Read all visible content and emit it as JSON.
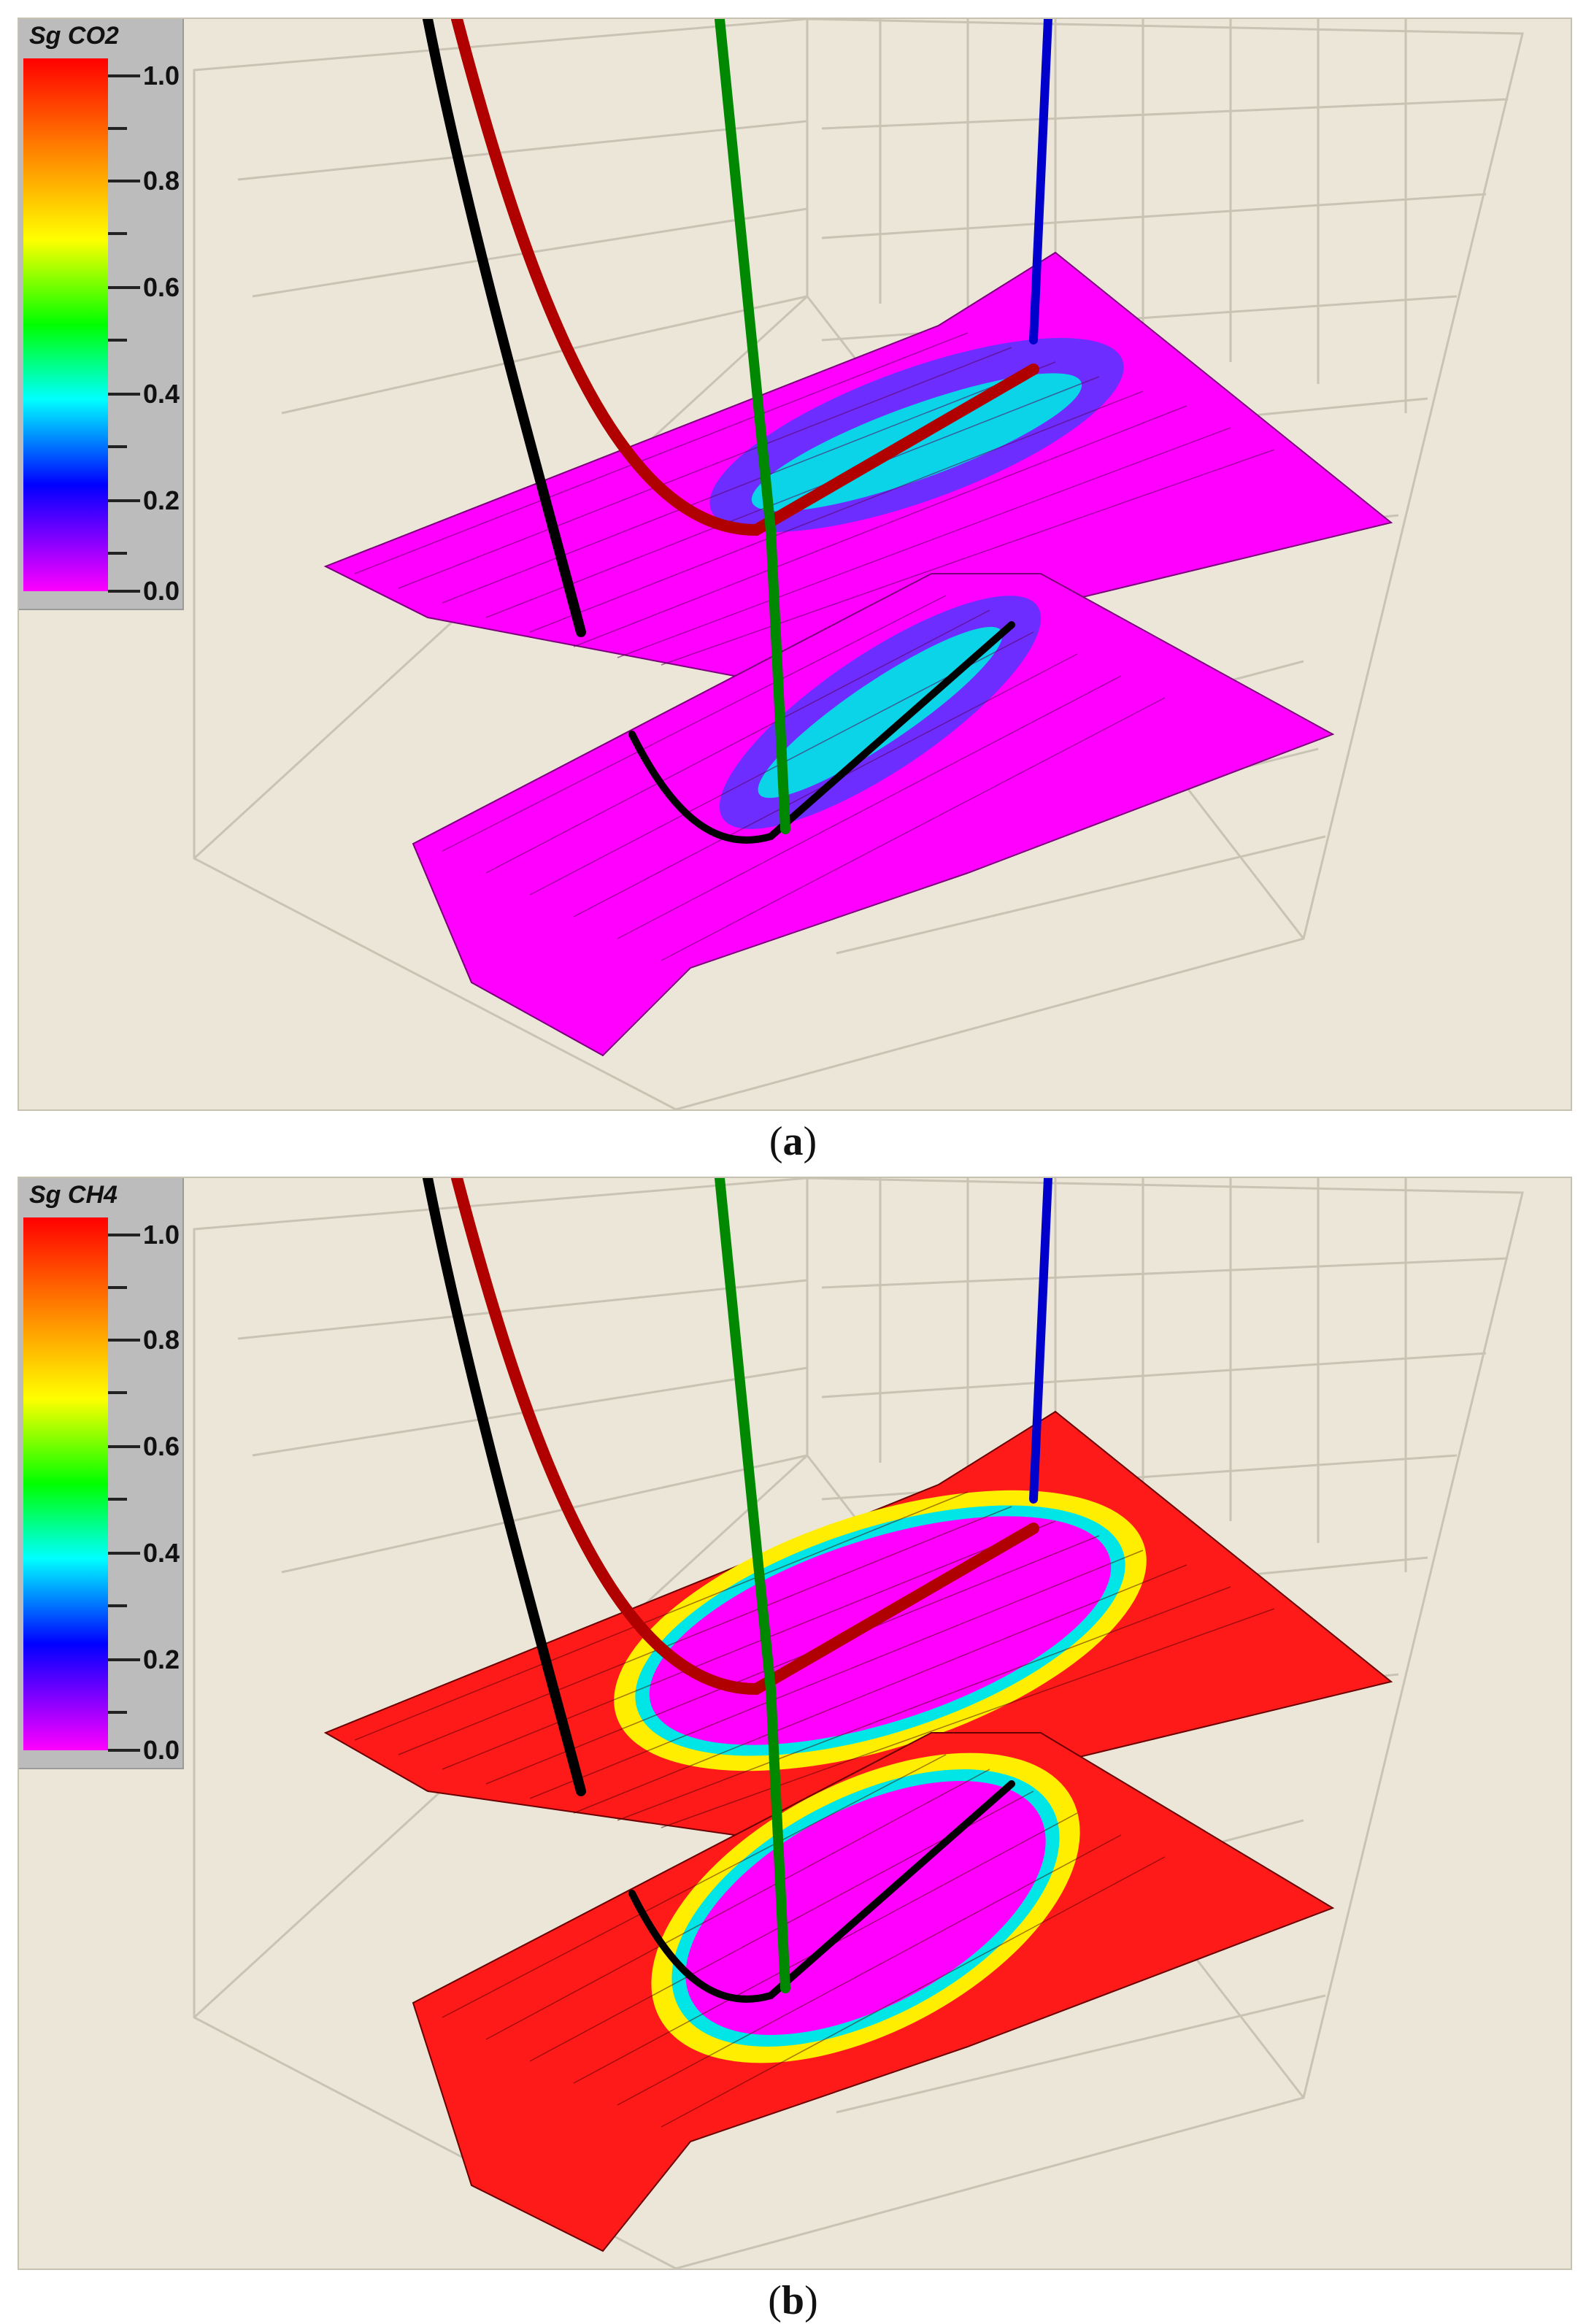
{
  "panels": [
    {
      "id": "a",
      "legend_title": "Sg CO2",
      "legend_ticks": [
        "1.0",
        "0.8",
        "0.6",
        "0.4",
        "0.2",
        "0.0"
      ],
      "caption_letter": "a",
      "background_color": "#ff00ff",
      "plume_color": "#00e6e6",
      "plume_edge_color": "#3030ff"
    },
    {
      "id": "b",
      "legend_title": "Sg CH4",
      "legend_ticks": [
        "1.0",
        "0.8",
        "0.6",
        "0.4",
        "0.2",
        "0.0"
      ],
      "caption_letter": "b",
      "background_color": "#ff1a1a",
      "ring_color": "#ffee00",
      "inner_color": "#ff00ff"
    }
  ],
  "colorbar_stops": [
    "#ff0000",
    "#ff8800",
    "#ffff00",
    "#00ff00",
    "#00ffff",
    "#0000ff",
    "#ff00ff"
  ],
  "wells": [
    {
      "color": "#000000"
    },
    {
      "color": "#b00000"
    },
    {
      "color": "#008800"
    },
    {
      "color": "#0000cc"
    }
  ]
}
